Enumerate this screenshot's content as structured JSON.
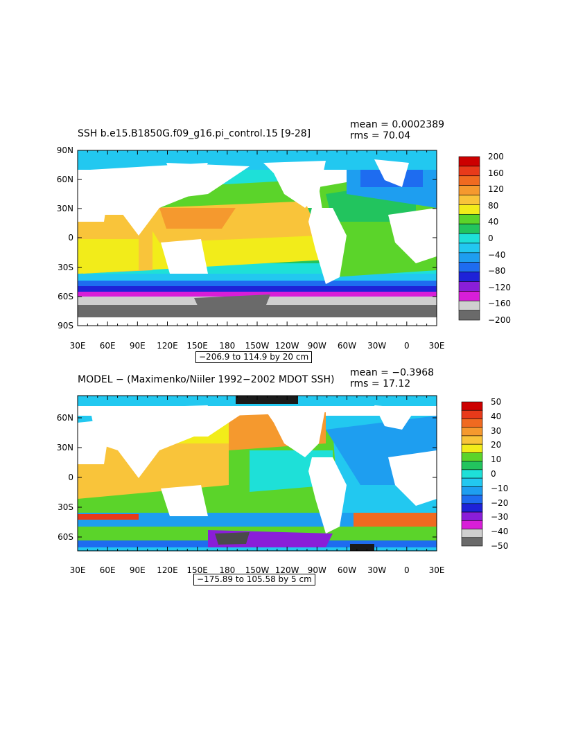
{
  "top_map": {
    "title": "SSH b.e15.B1850G.f09_g16.pi_control.15 [9-28]",
    "mean_text": "mean = 0.0002389",
    "rms_text": "rms = 70.04",
    "lat_labels": [
      "90N",
      "60N",
      "30N",
      "0",
      "30S",
      "60S",
      "90S"
    ],
    "lon_labels": [
      "30E",
      "60E",
      "90E",
      "120E",
      "150E",
      "180",
      "150W",
      "120W",
      "90W",
      "60W",
      "30W",
      "0",
      "30E"
    ],
    "range_text": "−206.9 to 114.9 by 20 cm",
    "colorbar": {
      "labels": [
        "200",
        "160",
        "120",
        "80",
        "40",
        "0",
        "−40",
        "−80",
        "−120",
        "−160",
        "−200"
      ],
      "colors": [
        "#cc0000",
        "#e83a1a",
        "#f06a20",
        "#f5992e",
        "#f9c43a",
        "#f2ec1a",
        "#5bd42a",
        "#22c45e",
        "#1ee0d8",
        "#22c8f0",
        "#1e9ef0",
        "#1e6cf0",
        "#1e22d8",
        "#8a1ed8",
        "#d81ed8",
        "#cfcfcf",
        "#6a6a6a"
      ]
    }
  },
  "bottom_map": {
    "title": "MODEL − (Maximenko/Niiler 1992−2002 MDOT SSH)",
    "mean_text": "mean = −0.3968",
    "rms_text": "rms = 17.12",
    "lat_labels": [
      "60N",
      "30N",
      "0",
      "30S",
      "60S"
    ],
    "lon_labels": [
      "30E",
      "60E",
      "90E",
      "120E",
      "150E",
      "180",
      "150W",
      "120W",
      "90W",
      "60W",
      "30W",
      "0",
      "30E"
    ],
    "range_text": "−175.89 to 105.58 by 5 cm",
    "colorbar": {
      "labels": [
        "50",
        "40",
        "30",
        "20",
        "10",
        "0",
        "−10",
        "−20",
        "−30",
        "−40",
        "−50"
      ],
      "colors": [
        "#cc0000",
        "#e83a1a",
        "#f06a20",
        "#f5992e",
        "#f9c43a",
        "#f2ec1a",
        "#5bd42a",
        "#22c45e",
        "#1ee0d8",
        "#22c8f0",
        "#1e9ef0",
        "#1e6cf0",
        "#1e22d8",
        "#8a1ed8",
        "#d81ed8",
        "#cfcfcf",
        "#6a6a6a"
      ]
    }
  }
}
